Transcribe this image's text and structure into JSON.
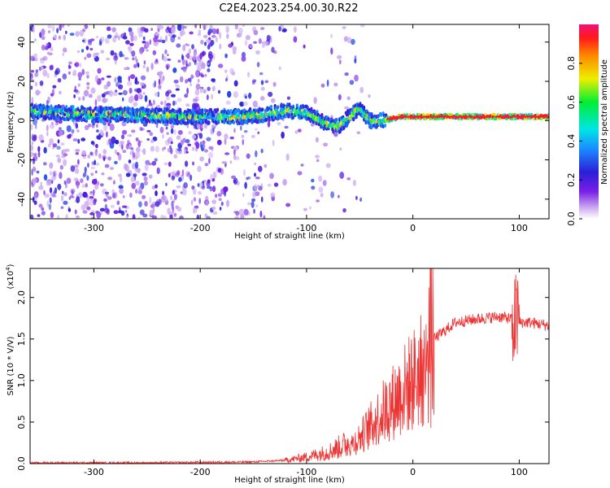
{
  "title": "C2E4.2023.254.00.30.R22",
  "colors": {
    "snr": "#ee3333"
  },
  "chart_data": [
    {
      "type": "heatmap",
      "xlabel": "Height of straight line (km)",
      "ylabel": "Frequency (Hz)",
      "xlim": [
        -360,
        128
      ],
      "ylim": [
        -50,
        49
      ],
      "xticks": [
        -300,
        -200,
        -100,
        0,
        100
      ],
      "yticks": [
        -40,
        -20,
        0,
        20,
        40
      ],
      "colorbar": {
        "label": "Normalized spectral amplitude",
        "range": [
          0.0,
          1.0
        ],
        "ticks": [
          "0.0",
          "0.2",
          "0.4",
          "0.6",
          "0.8"
        ],
        "colormap": "rainbow (purple-blue-cyan-green-yellow-orange-red-magenta)"
      },
      "ridge": {
        "description": "Dominant frequency line (normalized amplitude peaks)",
        "x": [
          -360,
          -330,
          -300,
          -260,
          -220,
          -183,
          -160,
          -140,
          -120,
          -100,
          -90,
          -80,
          -70,
          -60,
          -50,
          -40,
          -30,
          -20,
          -10,
          0,
          30,
          60,
          90,
          128
        ],
        "y": [
          5,
          4,
          3,
          3,
          2,
          2,
          2,
          3,
          5,
          4,
          1,
          -2,
          -3,
          2,
          6,
          0,
          0,
          1,
          2,
          2,
          2,
          2,
          2,
          2
        ]
      },
      "grid": false
    },
    {
      "type": "line",
      "xlabel": "Height of straight line (km)",
      "ylabel": "SNR (10 * V/V)",
      "yscale_label": "(x10",
      "yscale_exp": "4",
      "yscale_close": ")",
      "xlim": [
        -360,
        128
      ],
      "ylim": [
        0,
        2.35
      ],
      "xticks": [
        -300,
        -200,
        -100,
        0,
        100
      ],
      "yticks": [
        "0.0",
        "0.5",
        "1.0",
        "1.5",
        "2.0"
      ],
      "series": [
        {
          "envelope_x": [
            -360,
            -250,
            -150,
            -120,
            -100,
            -80,
            -60,
            -50,
            -40,
            -30,
            -20,
            -10,
            0,
            10,
            20,
            30,
            40,
            60,
            80,
            90,
            95,
            100,
            110,
            128
          ],
          "envelope_y": [
            0.01,
            0.01,
            0.02,
            0.04,
            0.08,
            0.14,
            0.25,
            0.38,
            0.55,
            0.72,
            0.88,
            1.05,
            1.22,
            1.38,
            1.5,
            1.6,
            1.7,
            1.74,
            1.77,
            1.75,
            1.72,
            1.7,
            1.7,
            1.66
          ]
        }
      ],
      "grid": false
    }
  ]
}
